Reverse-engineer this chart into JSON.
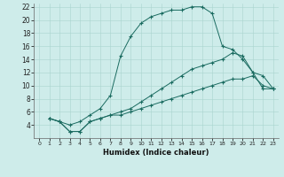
{
  "xlabel": "Humidex (Indice chaleur)",
  "bg_color": "#ceecea",
  "line_color": "#1a6b60",
  "grid_color": "#aad4cf",
  "xlim": [
    -0.5,
    23.5
  ],
  "ylim": [
    2,
    22.5
  ],
  "xticks": [
    0,
    1,
    2,
    3,
    4,
    5,
    6,
    7,
    8,
    9,
    10,
    11,
    12,
    13,
    14,
    15,
    16,
    17,
    18,
    19,
    20,
    21,
    22,
    23
  ],
  "yticks": [
    4,
    6,
    8,
    10,
    12,
    14,
    16,
    18,
    20,
    22
  ],
  "ytick_labels": [
    "4",
    "6",
    "8",
    "10",
    "12",
    "14",
    "16",
    "18",
    "20",
    "22"
  ],
  "line1_x": [
    1,
    2,
    3,
    4,
    5,
    6,
    7,
    8,
    9,
    10,
    11,
    12,
    13,
    14,
    15,
    16,
    17,
    18,
    19,
    20,
    21,
    22,
    23
  ],
  "line1_y": [
    5,
    4.5,
    4,
    4.5,
    5.5,
    6.5,
    8.5,
    14.5,
    17.5,
    19.5,
    20.5,
    21,
    21.5,
    21.5,
    22,
    22,
    21,
    16,
    15.5,
    14,
    12,
    9.5,
    9.5
  ],
  "line2_x": [
    1,
    2,
    3,
    4,
    5,
    6,
    7,
    8,
    9,
    10,
    11,
    12,
    13,
    14,
    15,
    16,
    17,
    18,
    19,
    20,
    21,
    22,
    23
  ],
  "line2_y": [
    5,
    4.5,
    3,
    3,
    4.5,
    5,
    5.5,
    6,
    6.5,
    7.5,
    8.5,
    9.5,
    10.5,
    11.5,
    12.5,
    13,
    13.5,
    14,
    15,
    14.5,
    12,
    11.5,
    9.5
  ],
  "line3_x": [
    1,
    2,
    3,
    4,
    5,
    6,
    7,
    8,
    9,
    10,
    11,
    12,
    13,
    14,
    15,
    16,
    17,
    18,
    19,
    20,
    21,
    22,
    23
  ],
  "line3_y": [
    5,
    4.5,
    3,
    3,
    4.5,
    5,
    5.5,
    5.5,
    6,
    6.5,
    7,
    7.5,
    8,
    8.5,
    9,
    9.5,
    10,
    10.5,
    11,
    11,
    11.5,
    10,
    9.5
  ]
}
